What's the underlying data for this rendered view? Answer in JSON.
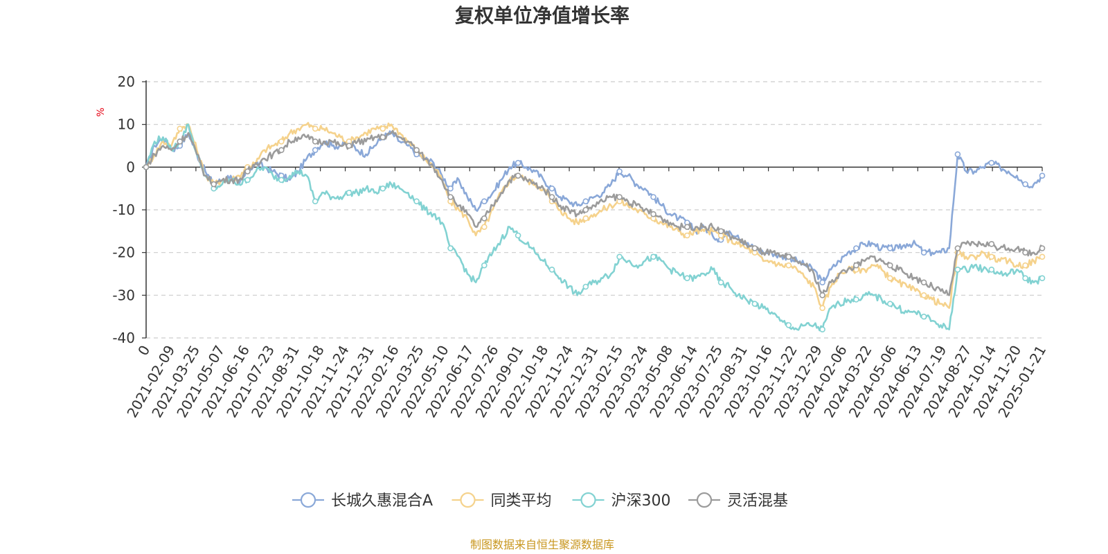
{
  "chart_data": {
    "type": "line",
    "title": "复权单位净值增长率",
    "ylabel": "%",
    "xlabel": "",
    "ylim": [
      -40,
      20
    ],
    "yticks": [
      20,
      10,
      0,
      -10,
      -20,
      -30,
      -40
    ],
    "grid": true,
    "legend_position": "bottom-center",
    "x_tick_labels": [
      "0",
      "2021-02-09",
      "2021-03-25",
      "2021-05-07",
      "2021-06-16",
      "2021-07-23",
      "2021-08-31",
      "2021-10-18",
      "2021-11-24",
      "2021-12-31",
      "2022-02-16",
      "2022-03-25",
      "2022-05-10",
      "2022-06-17",
      "2022-07-26",
      "2022-09-01",
      "2022-10-18",
      "2022-11-24",
      "2022-12-31",
      "2023-02-15",
      "2023-03-24",
      "2023-05-08",
      "2023-06-14",
      "2023-07-25",
      "2023-08-31",
      "2023-10-16",
      "2023-11-22",
      "2023-12-29",
      "2024-02-06",
      "2024-03-22",
      "2024-05-06",
      "2024-06-13",
      "2024-07-19",
      "2024-08-27",
      "2024-10-14",
      "2024-11-20",
      "2025-01-21"
    ],
    "series": [
      {
        "name": "长城久惠混合A",
        "color": "#8aa8d8",
        "values": [
          0,
          5,
          7,
          4,
          5,
          8,
          3,
          -1,
          -4,
          -3,
          -2,
          -4,
          -1,
          1,
          0,
          -1,
          -2,
          -3,
          -1,
          2,
          4,
          6,
          5,
          5,
          6,
          4,
          3,
          5,
          7,
          8,
          6,
          5,
          3,
          2,
          1,
          -2,
          -5,
          -3,
          -7,
          -10,
          -8,
          -6,
          -3,
          0,
          1,
          0,
          -1,
          -3,
          -5,
          -7,
          -8,
          -9,
          -8,
          -7,
          -6,
          -4,
          -1,
          -2,
          -4,
          -5,
          -7,
          -9,
          -11,
          -12,
          -13,
          -15,
          -14,
          -16,
          -17,
          -15,
          -16,
          -18,
          -19,
          -20,
          -20,
          -21,
          -21,
          -22,
          -23,
          -24,
          -27,
          -24,
          -22,
          -20,
          -19,
          -18,
          -18,
          -19,
          -19,
          -19,
          -18,
          -18,
          -20,
          -20,
          -20,
          -19,
          3,
          -1,
          -1,
          0,
          1,
          0,
          -1,
          -2,
          -4,
          -4,
          -2
        ]
      },
      {
        "name": "同类平均",
        "color": "#f5d28c",
        "values": [
          0,
          3,
          6,
          5,
          9,
          10,
          4,
          -2,
          -4,
          -3,
          -3,
          -2,
          0,
          1,
          4,
          5,
          6,
          8,
          9,
          10,
          9,
          9,
          8,
          7,
          6,
          7,
          8,
          9,
          9,
          10,
          8,
          6,
          4,
          2,
          0,
          -3,
          -8,
          -10,
          -12,
          -16,
          -14,
          -10,
          -6,
          -3,
          -2,
          -3,
          -4,
          -5,
          -8,
          -10,
          -12,
          -13,
          -12,
          -11,
          -10,
          -9,
          -8,
          -9,
          -10,
          -11,
          -12,
          -13,
          -14,
          -15,
          -16,
          -15,
          -15,
          -15,
          -16,
          -17,
          -18,
          -19,
          -20,
          -22,
          -22,
          -23,
          -23,
          -24,
          -26,
          -28,
          -33,
          -28,
          -25,
          -24,
          -24,
          -24,
          -23,
          -24,
          -26,
          -27,
          -28,
          -29,
          -30,
          -31,
          -32,
          -33,
          -20,
          -21,
          -21,
          -20,
          -21,
          -22,
          -22,
          -23,
          -23,
          -22,
          -21
        ]
      },
      {
        "name": "沪深300",
        "color": "#82d2d2",
        "values": [
          0,
          6,
          7,
          4,
          6,
          10,
          3,
          -2,
          -5,
          -4,
          -3,
          -4,
          -3,
          -1,
          0,
          -2,
          -3,
          -2,
          -1,
          -2,
          -8,
          -6,
          -7,
          -7,
          -6,
          -6,
          -5,
          -6,
          -5,
          -4,
          -5,
          -6,
          -8,
          -10,
          -11,
          -13,
          -19,
          -21,
          -25,
          -27,
          -23,
          -20,
          -17,
          -14,
          -16,
          -18,
          -20,
          -22,
          -24,
          -26,
          -28,
          -30,
          -28,
          -27,
          -26,
          -25,
          -21,
          -22,
          -23,
          -22,
          -21,
          -22,
          -24,
          -25,
          -26,
          -26,
          -25,
          -24,
          -27,
          -28,
          -30,
          -31,
          -32,
          -33,
          -34,
          -36,
          -37,
          -38,
          -37,
          -37,
          -38,
          -33,
          -32,
          -31,
          -31,
          -30,
          -30,
          -31,
          -32,
          -33,
          -34,
          -34,
          -35,
          -36,
          -37,
          -38,
          -24,
          -24,
          -23,
          -24,
          -24,
          -25,
          -25,
          -24,
          -26,
          -27,
          -26
        ]
      },
      {
        "name": "灵活混基",
        "color": "#9b9b9b",
        "values": [
          0,
          3,
          5,
          4,
          6,
          8,
          3,
          -2,
          -4,
          -3,
          -3,
          -3,
          -1,
          1,
          2,
          3,
          4,
          6,
          7,
          7,
          6,
          6,
          6,
          5,
          5,
          6,
          6,
          7,
          7,
          8,
          7,
          6,
          4,
          2,
          0,
          -3,
          -7,
          -9,
          -11,
          -14,
          -12,
          -9,
          -6,
          -3,
          -2,
          -3,
          -4,
          -5,
          -7,
          -9,
          -10,
          -11,
          -10,
          -9,
          -8,
          -7,
          -7,
          -8,
          -9,
          -10,
          -11,
          -12,
          -13,
          -14,
          -14,
          -14,
          -14,
          -14,
          -15,
          -16,
          -17,
          -18,
          -19,
          -20,
          -20,
          -21,
          -21,
          -22,
          -23,
          -25,
          -30,
          -27,
          -25,
          -24,
          -23,
          -22,
          -21,
          -22,
          -23,
          -24,
          -25,
          -26,
          -27,
          -28,
          -29,
          -30,
          -19,
          -18,
          -18,
          -18,
          -18,
          -19,
          -19,
          -19,
          -20,
          -20,
          -19
        ]
      }
    ]
  },
  "source_note": "制图数据来自恒生聚源数据库"
}
